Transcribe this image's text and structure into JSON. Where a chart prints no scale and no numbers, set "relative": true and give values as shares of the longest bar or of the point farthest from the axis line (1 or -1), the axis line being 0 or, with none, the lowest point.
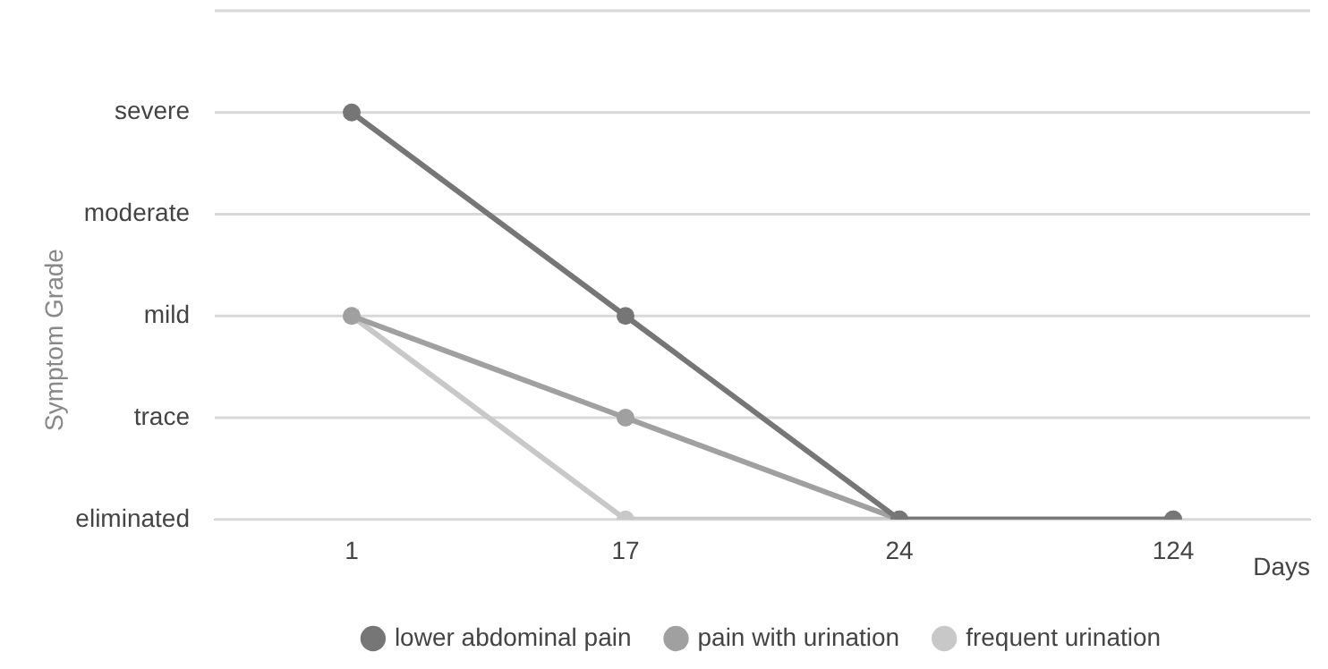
{
  "chart_data": {
    "type": "line",
    "annotations": [
      "Symptom Grade"
    ],
    "xlabel": "Days",
    "relative": true,
    "categories": [
      "1",
      "17",
      "24",
      "124"
    ],
    "series": [
      {
        "name": "lower abdominal pain",
        "color": "#767676",
        "values": [
          1,
          0.5,
          0,
          0
        ]
      },
      {
        "name": "pain with urination",
        "color": "#a0a0a0",
        "values": [
          0.5,
          0.25,
          0,
          0
        ]
      },
      {
        "name": "frequent urination",
        "color": "#c8c8c8",
        "values": [
          0.5,
          0,
          0,
          0
        ]
      }
    ],
    "ref_lines": [
      {
        "axis": "y",
        "value": 0,
        "label": "eliminated",
        "color": "#d8d8d8"
      },
      {
        "axis": "y",
        "value": 0.25,
        "label": "trace",
        "color": "#d8d8d8"
      },
      {
        "axis": "y",
        "value": 0.5,
        "label": "mild",
        "color": "#d8d8d8"
      },
      {
        "axis": "y",
        "value": 0.75,
        "label": "moderate",
        "color": "#d8d8d8"
      },
      {
        "axis": "y",
        "value": 1,
        "label": "severe",
        "color": "#d8d8d8"
      },
      {
        "axis": "y",
        "value": 1.25,
        "label": null,
        "color": "#d8d8d8"
      }
    ],
    "legend": "bottom",
    "marker": "circle",
    "line_style": "solid"
  }
}
